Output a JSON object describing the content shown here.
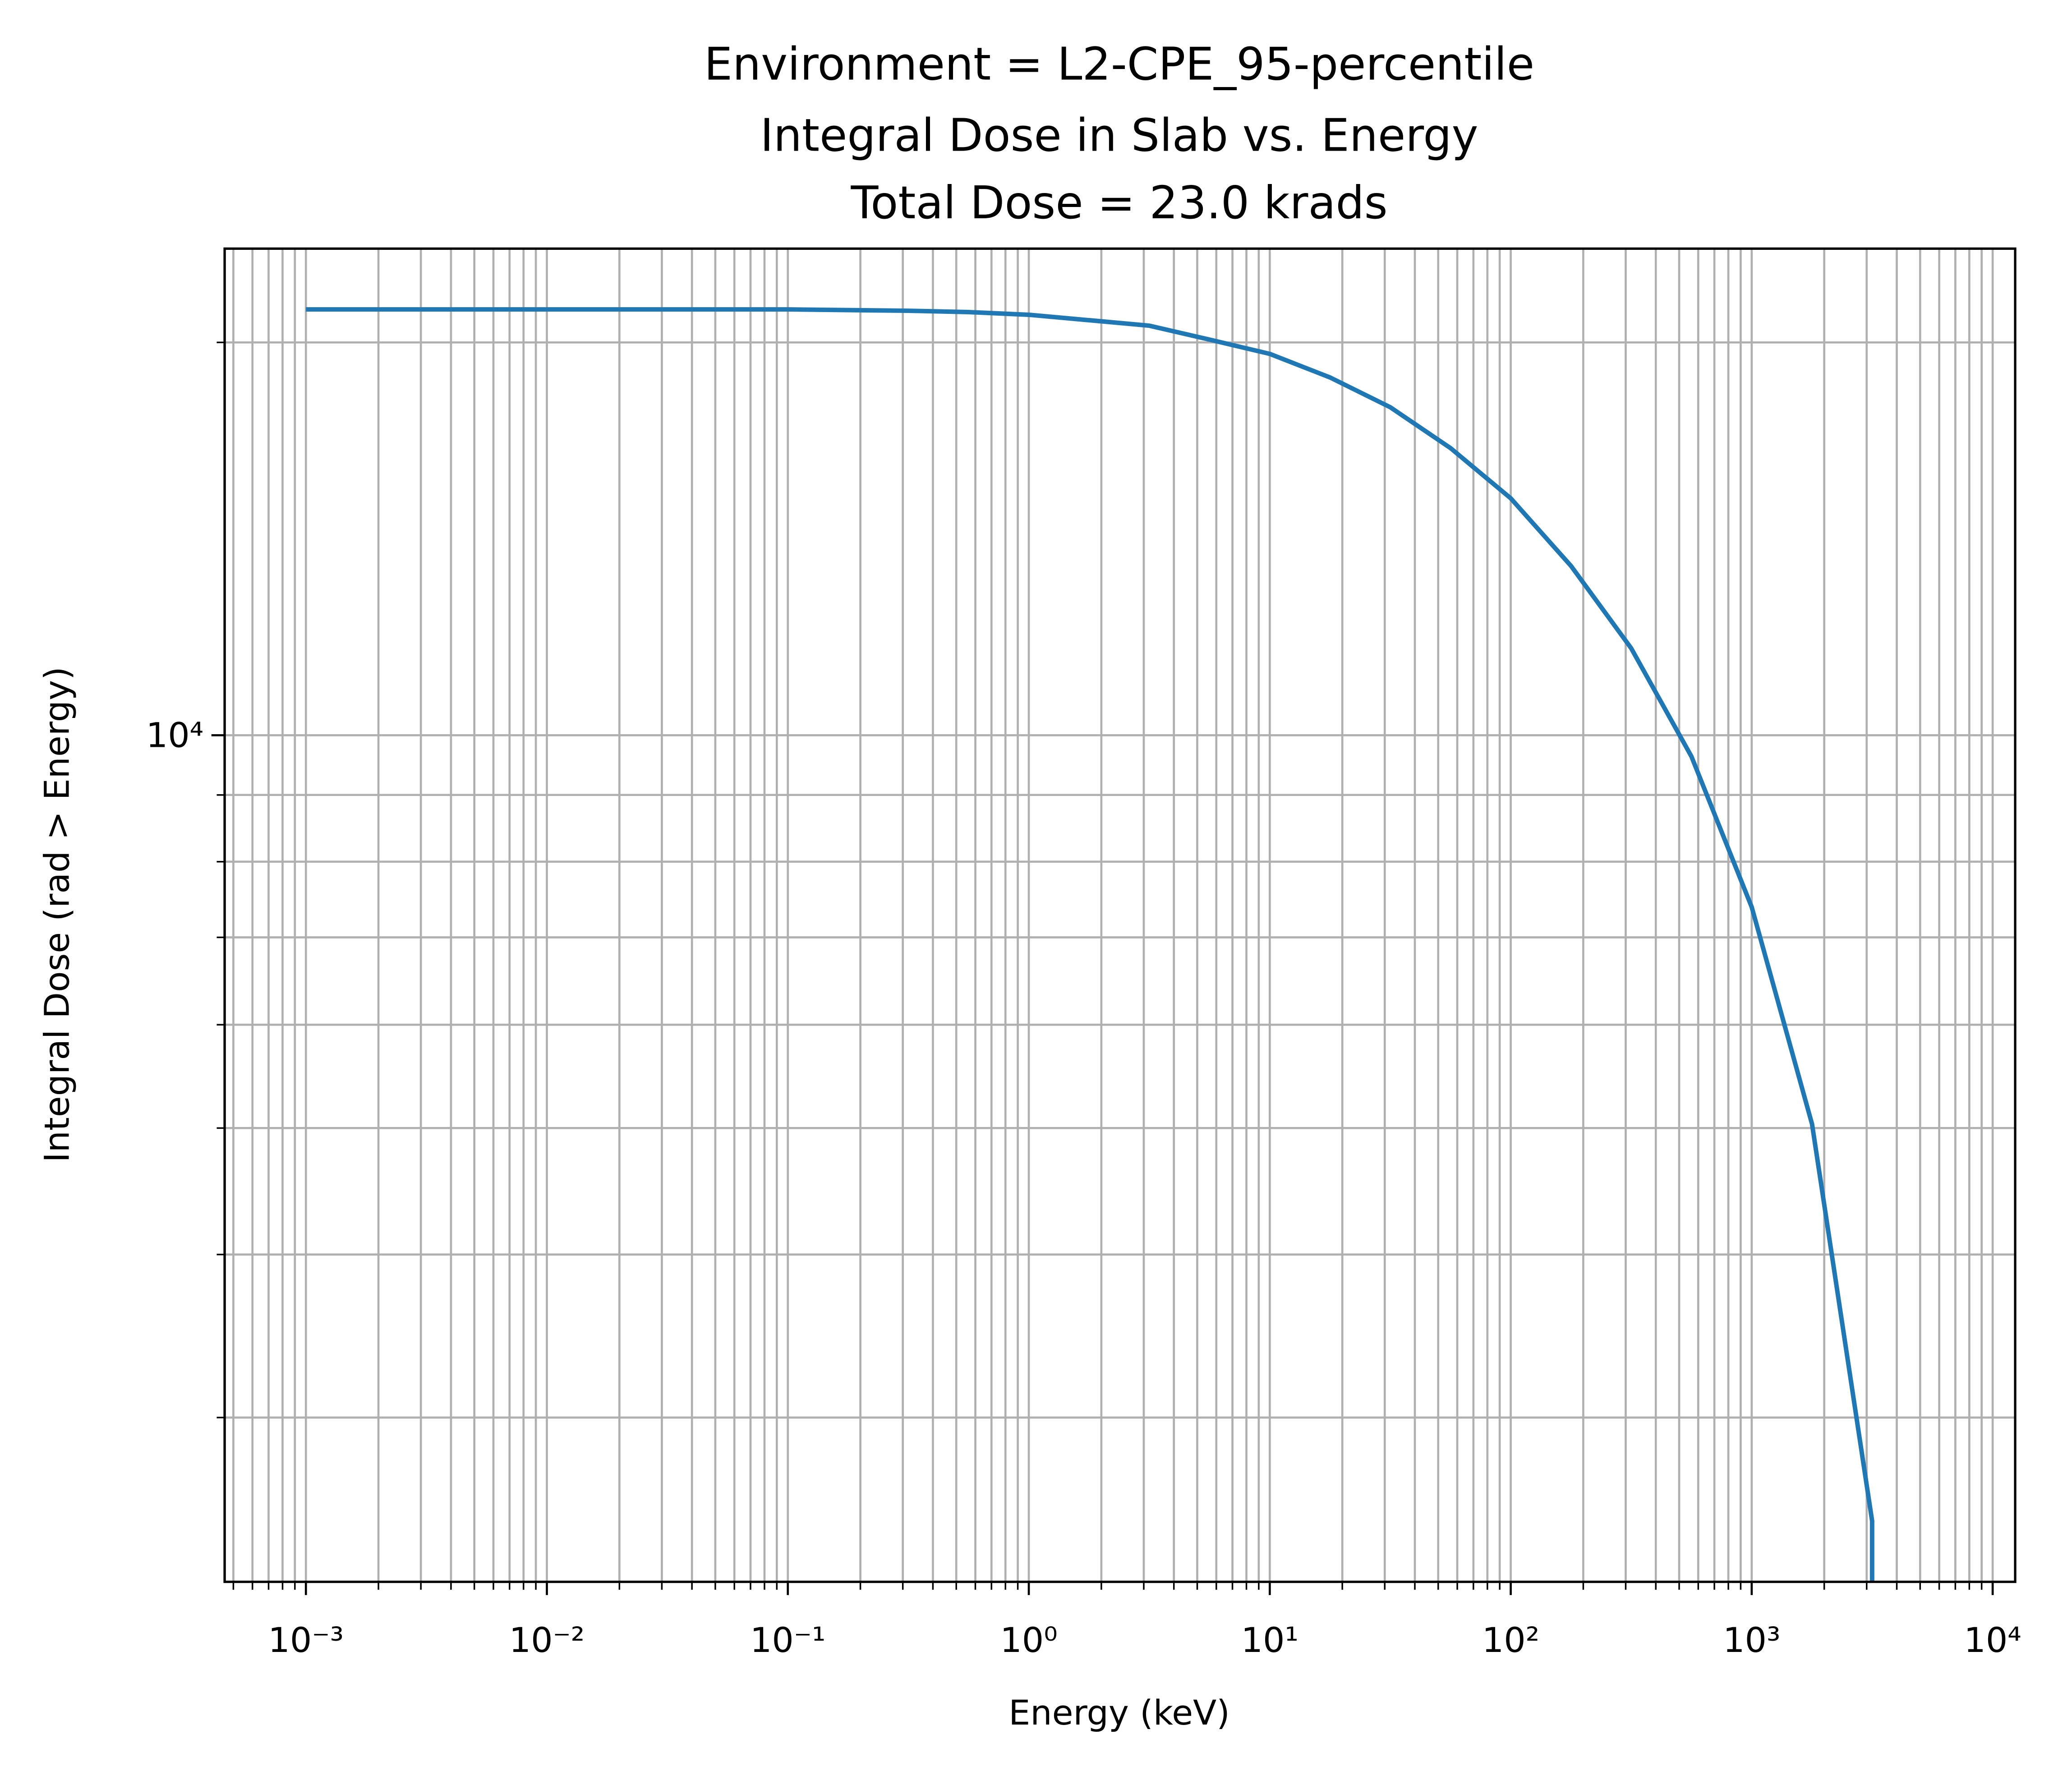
{
  "chart_data": {
    "type": "line",
    "title": [
      "Environment = L2-CPE_95-percentile",
      "Integral Dose in Slab vs. Energy",
      "Total Dose = 23.0 krads"
    ],
    "x_label": "Energy (keV)",
    "y_label": "Integral Dose (rad > Energy)",
    "x": [
      0.001,
      0.01,
      0.1,
      0.316,
      0.562,
      1,
      1.78,
      3.16,
      5.62,
      10,
      17.8,
      31.6,
      56.2,
      100,
      178,
      316,
      562,
      1000,
      1780,
      3160,
      3160
    ],
    "series": [
      {
        "name": "Integral Dose",
        "color": "#1f77b4",
        "values": [
          21200,
          21200,
          21200,
          21150,
          21100,
          21000,
          20800,
          20600,
          20100,
          19600,
          18800,
          17840,
          16600,
          15190,
          13480,
          11660,
          9634,
          7385,
          5035,
          2500,
          2000
        ]
      }
    ],
    "xscale": "log",
    "yscale": "log",
    "xlim": [
      0.00046,
      12400
    ],
    "ylim": [
      2245,
      23600
    ],
    "xticks": [
      {
        "value": 0.001,
        "label": "10⁻³"
      },
      {
        "value": 0.01,
        "label": "10⁻²"
      },
      {
        "value": 0.1,
        "label": "10⁻¹"
      },
      {
        "value": 1,
        "label": "10⁰"
      },
      {
        "value": 10,
        "label": "10¹"
      },
      {
        "value": 100,
        "label": "10²"
      },
      {
        "value": 1000,
        "label": "10³"
      },
      {
        "value": 10000,
        "label": "10⁴"
      }
    ],
    "yticks": [
      {
        "value": 10000,
        "label": "10⁴"
      }
    ],
    "xminor": [
      0.0005,
      0.0006,
      0.0007,
      0.0008,
      0.0009,
      0.002,
      0.003,
      0.004,
      0.005,
      0.006,
      0.007,
      0.008,
      0.009,
      0.02,
      0.03,
      0.04,
      0.05,
      0.06,
      0.07,
      0.08,
      0.09,
      0.2,
      0.3,
      0.4,
      0.5,
      0.6,
      0.7,
      0.8,
      0.9,
      2,
      3,
      4,
      5,
      6,
      7,
      8,
      9,
      20,
      30,
      40,
      50,
      60,
      70,
      80,
      90,
      200,
      300,
      400,
      500,
      600,
      700,
      800,
      900,
      2000,
      3000,
      4000,
      5000,
      6000,
      7000,
      8000,
      9000
    ],
    "yminor": [
      3000,
      4000,
      5000,
      6000,
      7000,
      8000,
      9000,
      20000
    ],
    "grid": true
  }
}
